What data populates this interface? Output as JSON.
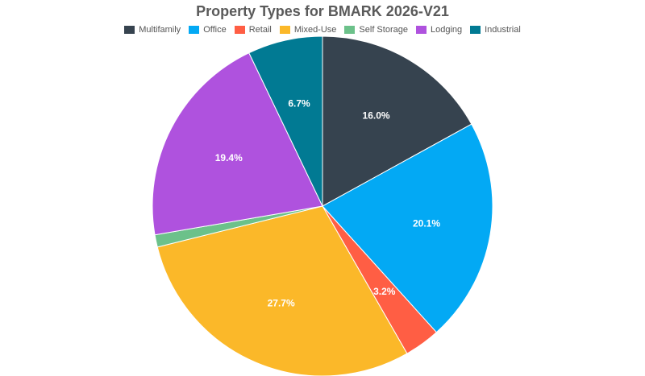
{
  "chart_data": {
    "type": "pie",
    "title": "Property Types for BMARK 2026-V21",
    "legend_position": "top",
    "slices": [
      {
        "name": "Multifamily",
        "value": 16.0,
        "label": "16.0%",
        "color": "#36434f"
      },
      {
        "name": "Office",
        "value": 20.1,
        "label": "20.1%",
        "color": "#03a9f4"
      },
      {
        "name": "Retail",
        "value": 3.2,
        "label": "3.2%",
        "color": "#ff5e44"
      },
      {
        "name": "Mixed-Use",
        "value": 27.7,
        "label": "27.7%",
        "color": "#fbb829"
      },
      {
        "name": "Self Storage",
        "value": 1.1,
        "label": "",
        "color": "#6cc18a"
      },
      {
        "name": "Lodging",
        "value": 19.4,
        "label": "19.4%",
        "color": "#af52de"
      },
      {
        "name": "Industrial",
        "value": 6.7,
        "label": "6.7%",
        "color": "#017a93"
      }
    ]
  }
}
